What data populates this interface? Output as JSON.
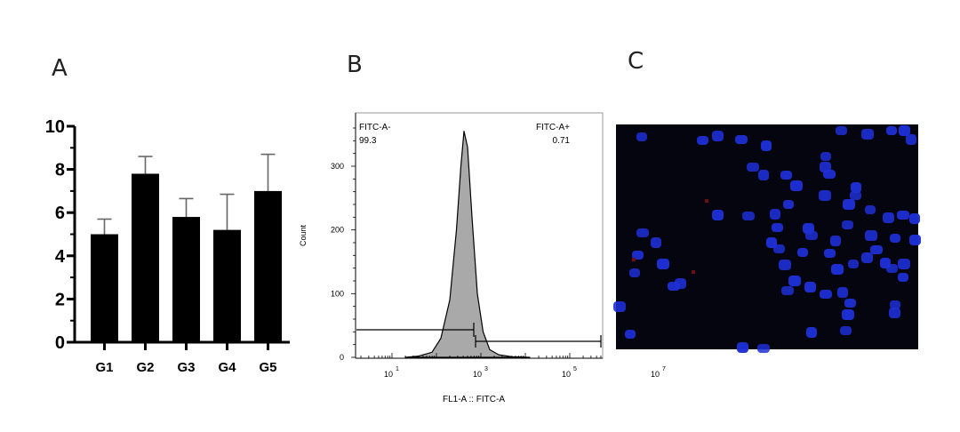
{
  "panels": {
    "a": "A",
    "b": "B",
    "c": "C"
  },
  "chart_data": [
    {
      "type": "bar",
      "panel": "A",
      "categories": [
        "G1",
        "G2",
        "G3",
        "G4",
        "G5"
      ],
      "values": [
        5.0,
        7.8,
        5.8,
        5.2,
        7.0
      ],
      "errors": [
        0.7,
        0.8,
        0.85,
        1.65,
        1.7
      ],
      "yticks": [
        "0",
        "2",
        "4",
        "6",
        "8",
        "10"
      ],
      "ylim": [
        0,
        10
      ],
      "colors": {
        "bar": "#000000",
        "error": "#666666"
      }
    },
    {
      "type": "area",
      "panel": "B",
      "xlabel": "FL1-A :: FITC-A",
      "ylabel": "Count",
      "xscale": "log",
      "yticks": [
        "0",
        "100",
        "200",
        "300"
      ],
      "ylim": [
        0,
        370
      ],
      "xtick_labels": [
        {
          "base": "10",
          "exp": "1"
        },
        {
          "base": "10",
          "exp": "3"
        },
        {
          "base": "10",
          "exp": "5"
        },
        {
          "base": "10",
          "exp": "7"
        }
      ],
      "histogram": {
        "x": [
          1.3,
          1.6,
          1.9,
          2.1,
          2.3,
          2.45,
          2.55,
          2.62,
          2.7,
          2.8,
          2.92,
          3.05,
          3.2,
          3.4,
          3.7,
          4.1
        ],
        "counts": [
          0,
          2,
          8,
          30,
          90,
          200,
          300,
          355,
          330,
          220,
          100,
          40,
          12,
          4,
          1,
          0
        ]
      },
      "gates": [
        {
          "name": "FITC-A-",
          "value": "99.3"
        },
        {
          "name": "FITC-A+",
          "value": "0.71"
        }
      ],
      "colors": {
        "fill": "#a9a9a9",
        "line": "#000000"
      }
    },
    {
      "type": "image",
      "panel": "C",
      "colors": {
        "background": "#050510",
        "nuclei": "#1e2fd6",
        "speck": "#6a1010"
      }
    }
  ]
}
